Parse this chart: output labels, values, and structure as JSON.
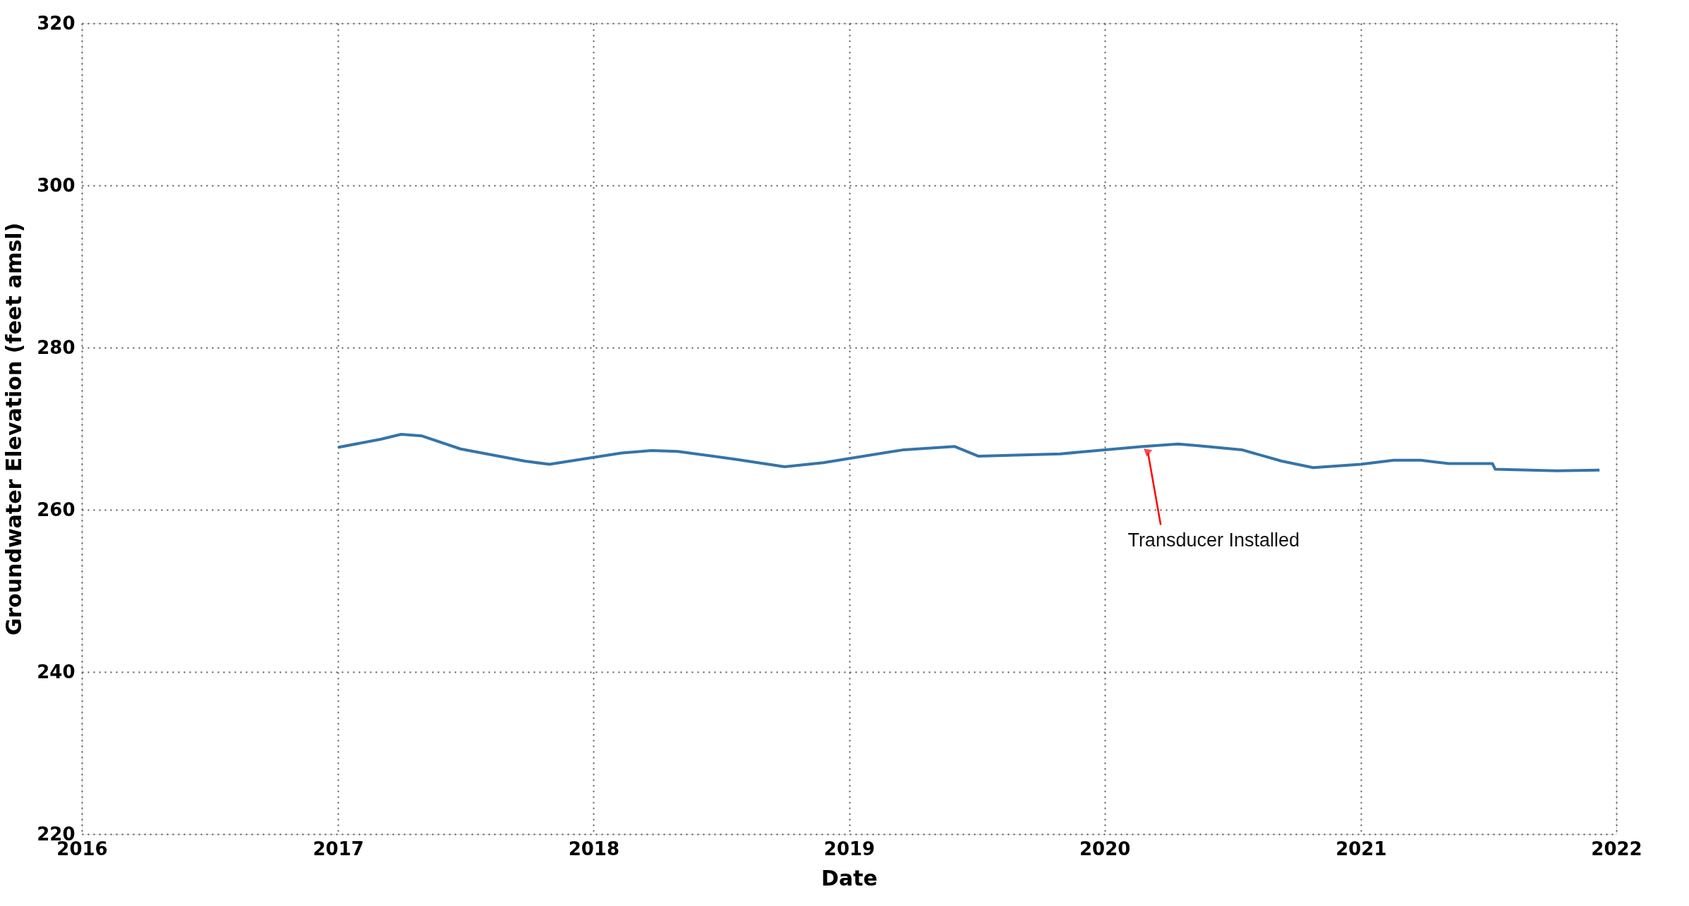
{
  "chart_data": {
    "type": "line",
    "xlabel": "Date",
    "ylabel": "Groundwater Elevation (feet amsl)",
    "x": [
      "2017-01-01",
      "2017-03-03",
      "2017-04-01",
      "2017-05-01",
      "2017-06-25",
      "2017-09-25",
      "2017-10-30",
      "2018-02-10",
      "2018-03-25",
      "2018-05-01",
      "2018-07-25",
      "2018-10-01",
      "2018-11-25",
      "2019-03-20",
      "2019-06-01",
      "2019-07-05",
      "2019-10-30",
      "2020-02-25",
      "2020-04-15",
      "2020-05-15",
      "2020-07-15",
      "2020-09-10",
      "2020-10-25",
      "2021-01-01",
      "2021-02-17",
      "2021-03-28",
      "2021-05-07",
      "2021-07-08",
      "2021-07-12",
      "2021-10-08",
      "2021-12-08"
    ],
    "series": [
      {
        "color": "#3574a8",
        "values": [
          267.7,
          268.7,
          269.3,
          269.1,
          267.5,
          266.0,
          265.6,
          267.0,
          267.3,
          267.2,
          266.2,
          265.3,
          265.8,
          267.4,
          267.8,
          266.6,
          266.9,
          267.8,
          268.1,
          267.9,
          267.4,
          266.0,
          265.2,
          265.6,
          266.1,
          266.1,
          265.7,
          265.7,
          265.0,
          264.8,
          264.9
        ]
      }
    ],
    "xlim": [
      "2016-01-01",
      "2022-01-01"
    ],
    "xticks": [
      "2016",
      "2017",
      "2018",
      "2019",
      "2020",
      "2021",
      "2022"
    ],
    "ylim": [
      220,
      320
    ],
    "yticks": [
      220,
      240,
      260,
      280,
      300,
      320
    ],
    "grid": true,
    "marker": "none",
    "line_style": "solid",
    "annotations": [
      {
        "text": "Transducer Installed",
        "x": "2020-03-01",
        "y": 267.7
      }
    ]
  }
}
